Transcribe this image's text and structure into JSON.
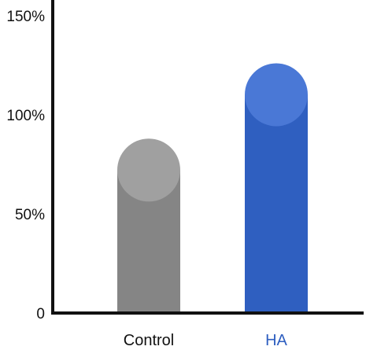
{
  "chart_data": {
    "type": "bar",
    "categories": [
      "Control",
      "HA"
    ],
    "values": [
      88,
      126
    ],
    "yticks": [
      "0",
      "50%",
      "100%",
      "150%"
    ],
    "ytick_values": [
      0,
      50,
      100,
      150
    ],
    "ylim": [
      0,
      150
    ],
    "title": "",
    "xlabel": "",
    "ylabel": "",
    "grid": false,
    "colors": {
      "Control": {
        "bar": "#858585",
        "cap": "#a0a0a0",
        "label": "#111111"
      },
      "HA": {
        "bar": "#2f5fc0",
        "cap": "#4a78d6",
        "label": "#2f5fc0"
      }
    },
    "axis_color": "#111111"
  }
}
